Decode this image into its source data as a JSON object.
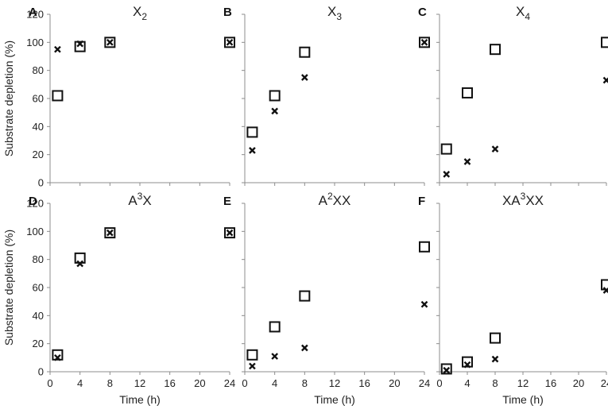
{
  "chart_data": [
    {
      "type": "scatter",
      "letter": "A",
      "title": {
        "base": "X",
        "sub": "2",
        "sup": ""
      },
      "xlabel": "",
      "ylabel": "Substrate depletion (%)",
      "xlim": [
        0,
        24
      ],
      "ylim": [
        0,
        120
      ],
      "series": [
        {
          "marker": "square",
          "x": [
            1,
            4,
            8,
            24
          ],
          "y": [
            62,
            97,
            100,
            100
          ]
        },
        {
          "marker": "cross",
          "x": [
            1,
            4,
            8,
            24
          ],
          "y": [
            95,
            99,
            100,
            100
          ]
        }
      ]
    },
    {
      "type": "scatter",
      "letter": "B",
      "title": {
        "base": "X",
        "sub": "3",
        "sup": ""
      },
      "xlabel": "",
      "ylabel": "",
      "xlim": [
        0,
        24
      ],
      "ylim": [
        0,
        120
      ],
      "series": [
        {
          "marker": "square",
          "x": [
            1,
            4,
            8,
            24
          ],
          "y": [
            36,
            62,
            93,
            100
          ]
        },
        {
          "marker": "cross",
          "x": [
            1,
            4,
            8,
            24
          ],
          "y": [
            23,
            51,
            75,
            100
          ]
        }
      ]
    },
    {
      "type": "scatter",
      "letter": "C",
      "title": {
        "base": "X",
        "sub": "4",
        "sup": ""
      },
      "xlabel": "",
      "ylabel": "",
      "xlim": [
        0,
        24
      ],
      "ylim": [
        0,
        120
      ],
      "series": [
        {
          "marker": "square",
          "x": [
            1,
            4,
            8,
            24
          ],
          "y": [
            24,
            64,
            95,
            100
          ]
        },
        {
          "marker": "cross",
          "x": [
            1,
            4,
            8,
            24
          ],
          "y": [
            6,
            15,
            24,
            73
          ]
        }
      ]
    },
    {
      "type": "scatter",
      "letter": "D",
      "title": {
        "base": "A",
        "sub": "",
        "sup": "3",
        "tail": "X"
      },
      "xlabel": "Time (h)",
      "ylabel": "Substrate depletion (%)",
      "xlim": [
        0,
        24
      ],
      "ylim": [
        0,
        120
      ],
      "series": [
        {
          "marker": "square",
          "x": [
            1,
            4,
            8,
            24
          ],
          "y": [
            12,
            81,
            99,
            99
          ]
        },
        {
          "marker": "cross",
          "x": [
            1,
            4,
            8,
            24
          ],
          "y": [
            10,
            77,
            99,
            99
          ]
        }
      ]
    },
    {
      "type": "scatter",
      "letter": "E",
      "title": {
        "base": "A",
        "sub": "",
        "sup": "2",
        "tail": "XX"
      },
      "xlabel": "Time (h)",
      "ylabel": "",
      "xlim": [
        0,
        24
      ],
      "ylim": [
        0,
        120
      ],
      "series": [
        {
          "marker": "square",
          "x": [
            1,
            4,
            8,
            24
          ],
          "y": [
            12,
            32,
            54,
            89
          ]
        },
        {
          "marker": "cross",
          "x": [
            1,
            4,
            8,
            24
          ],
          "y": [
            4,
            11,
            17,
            48
          ]
        }
      ]
    },
    {
      "type": "scatter",
      "letter": "F",
      "title": {
        "base": "XA",
        "sub": "",
        "sup": "3",
        "tail": "XX"
      },
      "xlabel": "Time (h)",
      "ylabel": "",
      "xlim": [
        0,
        24
      ],
      "ylim": [
        0,
        120
      ],
      "series": [
        {
          "marker": "square",
          "x": [
            1,
            4,
            8,
            24
          ],
          "y": [
            2,
            7,
            24,
            62
          ]
        },
        {
          "marker": "cross",
          "x": [
            1,
            4,
            8,
            24
          ],
          "y": [
            1,
            5,
            9,
            58
          ]
        }
      ]
    }
  ],
  "axes": {
    "xticks": [
      0,
      4,
      8,
      12,
      16,
      20,
      24
    ],
    "yticks": [
      0,
      20,
      40,
      60,
      80,
      100,
      120
    ]
  }
}
